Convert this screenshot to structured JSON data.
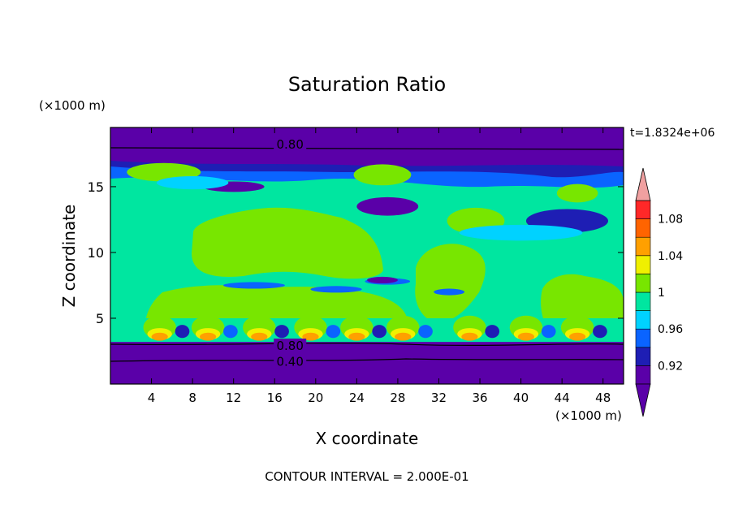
{
  "chart_data": {
    "type": "heatmap",
    "title": "Saturation Ratio",
    "xlabel": "X coordinate",
    "ylabel": "Z coordinate",
    "x_units": "(×1000 m)",
    "y_units": "(×1000 m)",
    "time_label": "t=1.8324e+06",
    "footer": "CONTOUR INTERVAL = 2.000E-01",
    "xlim": [
      0,
      50
    ],
    "ylim": [
      0,
      19.5
    ],
    "x_ticks": [
      4,
      8,
      12,
      16,
      20,
      24,
      28,
      32,
      36,
      40,
      44,
      48
    ],
    "y_ticks": [
      5,
      10,
      15
    ],
    "colorbar": {
      "labels": [
        "0.92",
        "0.96",
        "1",
        "1.04",
        "1.08"
      ],
      "label_values": [
        0.92,
        0.96,
        1.0,
        1.04,
        1.08
      ],
      "levels": [
        0.9,
        0.92,
        0.94,
        0.96,
        0.98,
        1.0,
        1.02,
        1.04,
        1.06,
        1.08,
        1.1
      ],
      "colors": [
        "#5a00a8",
        "#1e1eb4",
        "#0a64ff",
        "#00d2ff",
        "#00e6a0",
        "#78e600",
        "#f0f000",
        "#ffa000",
        "#ff6400",
        "#ff2828"
      ],
      "under_color": "#5a00a8",
      "over_color": "#f0a0a0"
    },
    "contour_labels": [
      {
        "text": "0.80",
        "x": 17.5,
        "y": 18.2
      },
      {
        "text": "0.80",
        "x": 17.5,
        "y": 2.9
      },
      {
        "text": "0.40",
        "x": 17.5,
        "y": 1.7
      }
    ],
    "regions": [
      {
        "level": 0.9,
        "desc": "dry layer near top",
        "y": [
          17.8,
          19.5
        ]
      },
      {
        "level": 1.0,
        "desc": "large saturated region",
        "x": [
          8,
          26
        ],
        "y": [
          8.5,
          13.8
        ]
      },
      {
        "level": 0.98,
        "desc": "moist mid-troposphere",
        "y": [
          4,
          14
        ]
      },
      {
        "level": 1.08,
        "desc": "boundary layer cloud bases",
        "y": [
          3.3,
          4.2
        ]
      },
      {
        "level": 0.9,
        "desc": "dry layer near surface",
        "y": [
          0,
          3.2
        ]
      }
    ]
  }
}
